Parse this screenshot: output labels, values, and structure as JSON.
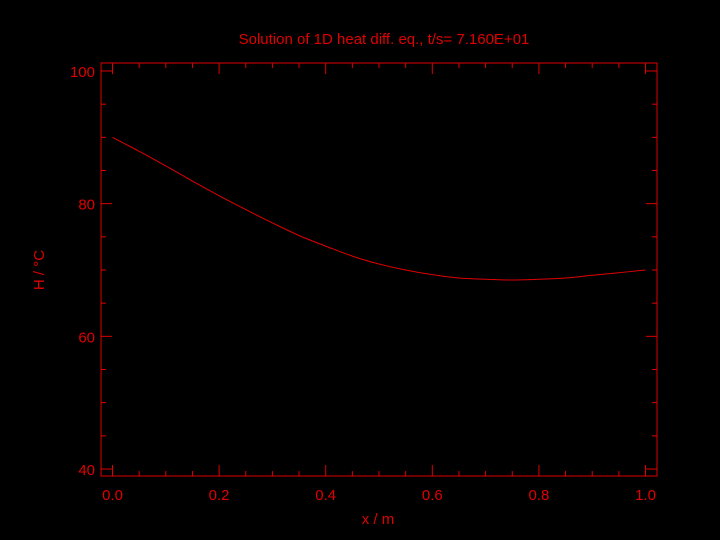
{
  "chart_data": {
    "type": "line",
    "title": "Solution of 1D heat diff. eq., t/s=  7.160E+01",
    "xlabel": "x / m",
    "ylabel": "H / °C",
    "xlim": [
      0.0,
      1.0
    ],
    "ylim": [
      40,
      100
    ],
    "xticks": [
      0.0,
      0.2,
      0.4,
      0.6,
      0.8,
      1.0
    ],
    "xtick_labels": [
      "0.0",
      "0.2",
      "0.4",
      "0.6",
      "0.8",
      "1.0"
    ],
    "yticks": [
      40,
      60,
      80,
      100
    ],
    "ytick_labels": [
      "40",
      "60",
      "80",
      "100"
    ],
    "grid": false,
    "color": "#e00000",
    "background": "#000000",
    "series": [
      {
        "x": [
          0.0,
          0.05,
          0.1,
          0.15,
          0.2,
          0.25,
          0.3,
          0.35,
          0.4,
          0.45,
          0.5,
          0.55,
          0.6,
          0.65,
          0.7,
          0.75,
          0.8,
          0.85,
          0.9,
          0.95,
          1.0
        ],
        "y": [
          90.0,
          87.9,
          85.7,
          83.4,
          81.2,
          79.1,
          77.1,
          75.2,
          73.6,
          72.1,
          70.9,
          70.0,
          69.3,
          68.8,
          68.6,
          68.5,
          68.6,
          68.8,
          69.2,
          69.6,
          70.0
        ]
      }
    ]
  }
}
